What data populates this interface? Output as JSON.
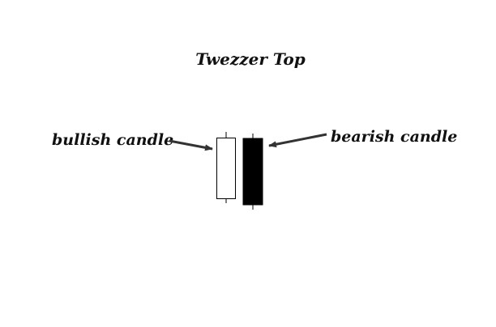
{
  "title": "Twezzer Top",
  "labels": {
    "left": "bullish candle",
    "right": "bearish candle"
  },
  "candles": [
    {
      "name": "bullish candle",
      "kind": "bullish",
      "fill": "#ffffff",
      "stroke": "#000000"
    },
    {
      "name": "bearish candle",
      "kind": "bearish",
      "fill": "#000000",
      "stroke": "#000000"
    }
  ],
  "colors": {
    "background": "#ffffff",
    "arrow": "#333333",
    "text": "#111111"
  }
}
